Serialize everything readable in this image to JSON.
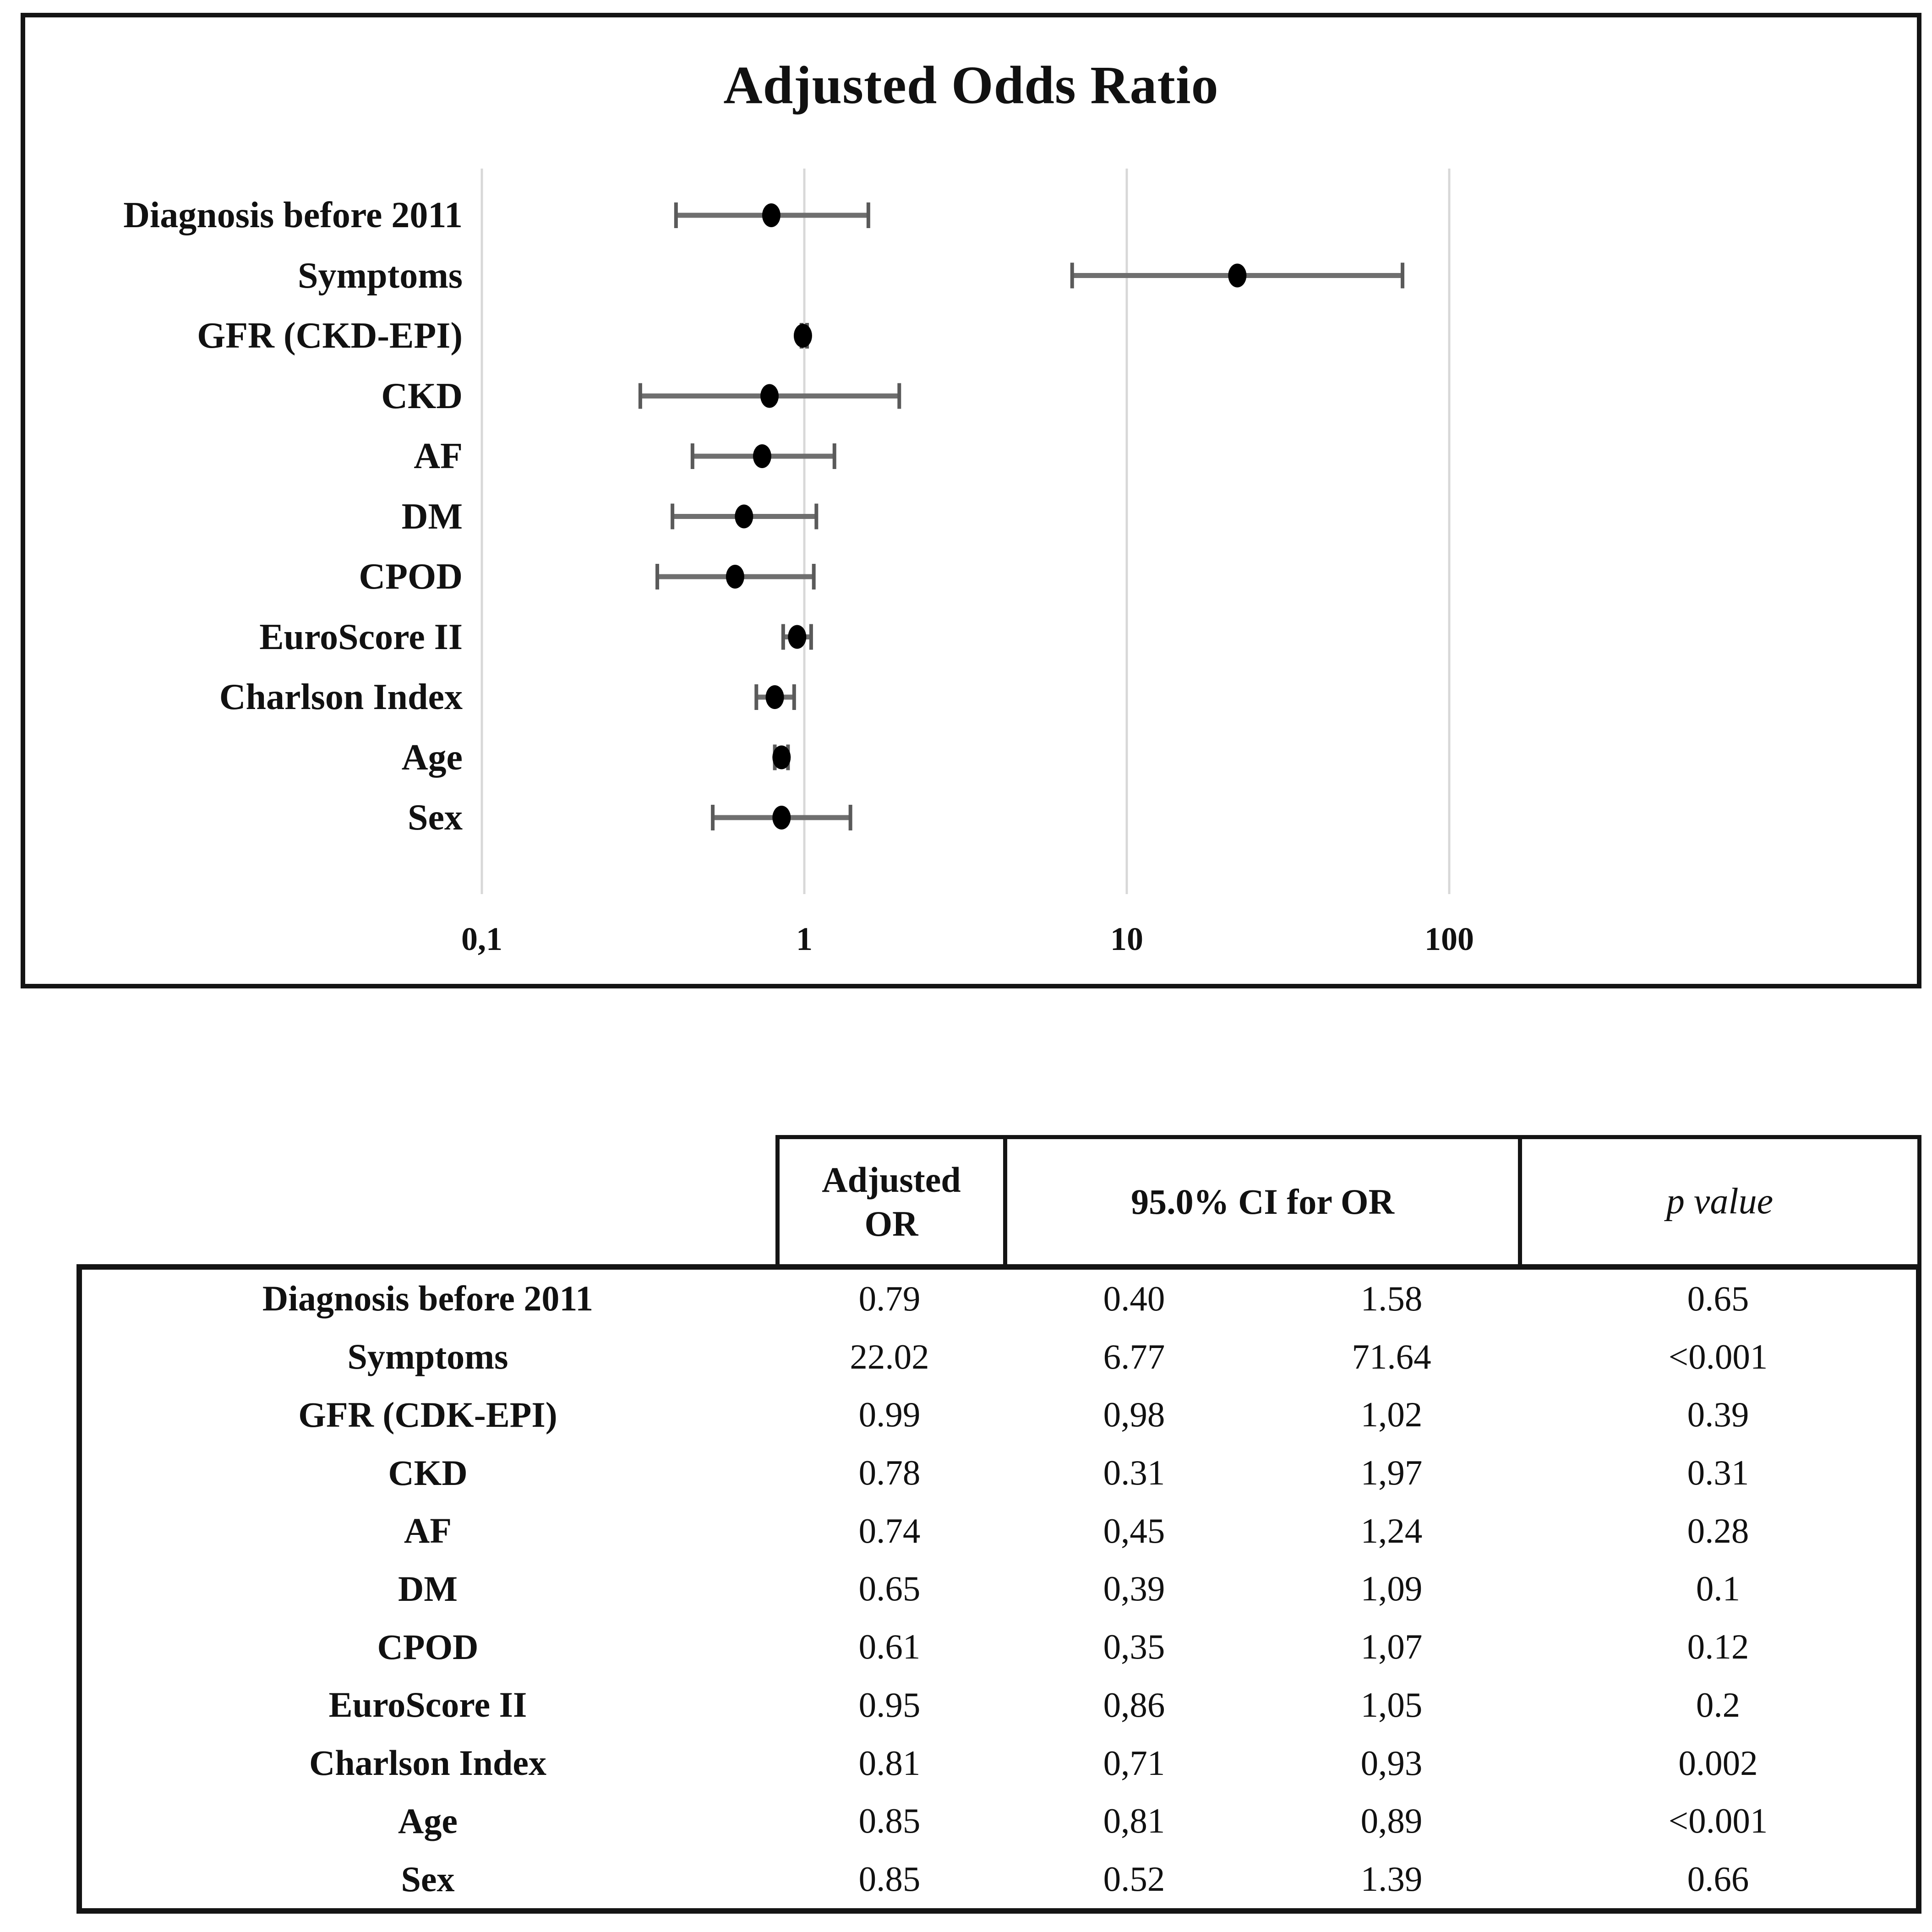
{
  "plot": {
    "title": "Adjusted Odds Ratio"
  },
  "chart_data": {
    "type": "scatter",
    "variant": "forest-plot",
    "title": "Adjusted Odds Ratio",
    "orientation": "horizontal-rows",
    "x_scale": "log10",
    "x_ticks": [
      0.1,
      1,
      10,
      100
    ],
    "x_tick_labels": [
      "0,1",
      "1",
      "10",
      "100"
    ],
    "xlim": [
      0.1,
      100
    ],
    "grid": "vertical-gridlines-at-decades",
    "legend": "none",
    "categories": [
      "Diagnosis before 2011",
      "Symptoms",
      "GFR (CKD-EPI)",
      "CKD",
      "AF",
      "DM",
      "CPOD",
      "EuroScore II",
      "Charlson Index",
      "Age",
      "Sex"
    ],
    "series": [
      {
        "name": "Adjusted OR",
        "values": [
          0.79,
          22.02,
          0.99,
          0.78,
          0.74,
          0.65,
          0.61,
          0.95,
          0.81,
          0.85,
          0.85
        ]
      },
      {
        "name": "95% CI lower",
        "values": [
          0.4,
          6.77,
          0.98,
          0.31,
          0.45,
          0.39,
          0.35,
          0.86,
          0.71,
          0.81,
          0.52
        ]
      },
      {
        "name": "95% CI upper",
        "values": [
          1.58,
          71.64,
          1.02,
          1.97,
          1.24,
          1.09,
          1.07,
          1.05,
          0.93,
          0.89,
          1.39
        ]
      }
    ],
    "marker_color": "#000000",
    "ci_bar_color": "#6f6f6f",
    "gridline_color": "#d8d8d8"
  },
  "table": {
    "header": {
      "adjusted_or": "Adjusted OR",
      "ci": "95.0% CI for OR",
      "p": "p value"
    },
    "rows": [
      {
        "label": "Diagnosis before 2011",
        "or": "0.79",
        "ci_low": "0.40",
        "ci_high": "1.58",
        "p": "0.65"
      },
      {
        "label": "Symptoms",
        "or": "22.02",
        "ci_low": "6.77",
        "ci_high": "71.64",
        "p": "<0.001"
      },
      {
        "label": "GFR (CDK-EPI)",
        "or": "0.99",
        "ci_low": "0,98",
        "ci_high": "1,02",
        "p": "0.39"
      },
      {
        "label": "CKD",
        "or": "0.78",
        "ci_low": "0.31",
        "ci_high": "1,97",
        "p": "0.31"
      },
      {
        "label": "AF",
        "or": "0.74",
        "ci_low": "0,45",
        "ci_high": "1,24",
        "p": "0.28"
      },
      {
        "label": "DM",
        "or": "0.65",
        "ci_low": "0,39",
        "ci_high": "1,09",
        "p": "0.1"
      },
      {
        "label": "CPOD",
        "or": "0.61",
        "ci_low": "0,35",
        "ci_high": "1,07",
        "p": "0.12"
      },
      {
        "label": "EuroScore II",
        "or": "0.95",
        "ci_low": "0,86",
        "ci_high": "1,05",
        "p": "0.2"
      },
      {
        "label": "Charlson Index",
        "or": "0.81",
        "ci_low": "0,71",
        "ci_high": "0,93",
        "p": "0.002"
      },
      {
        "label": "Age",
        "or": "0.85",
        "ci_low": "0,81",
        "ci_high": "0,89",
        "p": "<0.001"
      },
      {
        "label": "Sex",
        "or": "0.85",
        "ci_low": "0.52",
        "ci_high": "1.39",
        "p": "0.66"
      }
    ]
  }
}
